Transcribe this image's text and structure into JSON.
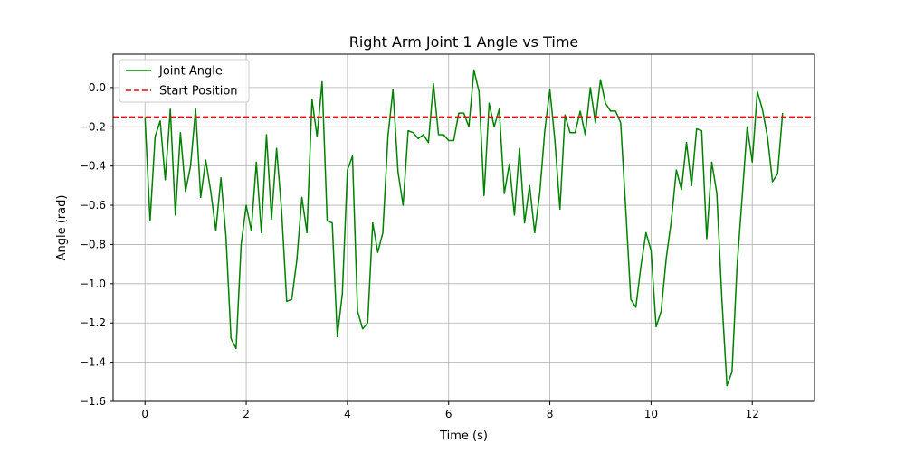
{
  "chart_data": {
    "type": "line",
    "title": "Right Arm Joint 1 Angle vs Time",
    "xlabel": "Time (s)",
    "ylabel": "Angle (rad)",
    "xlim": [
      -0.63,
      13.23
    ],
    "ylim": [
      -1.6,
      0.17
    ],
    "xticks": [
      0,
      2,
      4,
      6,
      8,
      10,
      12
    ],
    "yticks": [
      -1.6,
      -1.4,
      -1.2,
      -1.0,
      -0.8,
      -0.6,
      -0.4,
      -0.2,
      0.0
    ],
    "ytick_labels": [
      "−1.6",
      "−1.4",
      "−1.2",
      "−1.0",
      "−0.8",
      "−0.6",
      "−0.4",
      "−0.2",
      "0.0"
    ],
    "grid": true,
    "legend_position": "top-left",
    "series": [
      {
        "name": "Joint Angle",
        "style": "solid",
        "color": "#008000",
        "x": [
          0.0,
          0.1,
          0.2,
          0.3,
          0.4,
          0.5,
          0.6,
          0.7,
          0.8,
          0.9,
          1.0,
          1.1,
          1.2,
          1.3,
          1.4,
          1.5,
          1.6,
          1.7,
          1.8,
          1.9,
          2.0,
          2.1,
          2.2,
          2.3,
          2.4,
          2.5,
          2.6,
          2.7,
          2.8,
          2.9,
          3.0,
          3.1,
          3.2,
          3.3,
          3.4,
          3.5,
          3.6,
          3.7,
          3.8,
          3.9,
          4.0,
          4.1,
          4.2,
          4.3,
          4.4,
          4.5,
          4.6,
          4.7,
          4.8,
          4.9,
          5.0,
          5.1,
          5.2,
          5.3,
          5.4,
          5.5,
          5.6,
          5.7,
          5.8,
          5.9,
          6.0,
          6.1,
          6.2,
          6.3,
          6.4,
          6.5,
          6.6,
          6.7,
          6.8,
          6.9,
          7.0,
          7.1,
          7.2,
          7.3,
          7.4,
          7.5,
          7.6,
          7.7,
          7.8,
          7.9,
          8.0,
          8.1,
          8.2,
          8.3,
          8.4,
          8.5,
          8.6,
          8.7,
          8.8,
          8.9,
          9.0,
          9.1,
          9.2,
          9.3,
          9.4,
          9.5,
          9.6,
          9.7,
          9.8,
          9.9,
          10.0,
          10.1,
          10.2,
          10.3,
          10.4,
          10.5,
          10.6,
          10.7,
          10.8,
          10.9,
          11.0,
          11.1,
          11.2,
          11.3,
          11.4,
          11.5,
          11.6,
          11.7,
          11.8,
          11.9,
          12.0,
          12.1,
          12.2,
          12.3,
          12.4,
          12.5,
          12.6
        ],
        "y": [
          -0.15,
          -0.68,
          -0.25,
          -0.17,
          -0.47,
          -0.11,
          -0.65,
          -0.23,
          -0.53,
          -0.4,
          -0.11,
          -0.56,
          -0.37,
          -0.53,
          -0.73,
          -0.46,
          -0.76,
          -1.28,
          -1.33,
          -0.8,
          -0.6,
          -0.73,
          -0.38,
          -0.74,
          -0.24,
          -0.67,
          -0.31,
          -0.63,
          -1.09,
          -1.08,
          -0.88,
          -0.56,
          -0.74,
          -0.06,
          -0.25,
          0.03,
          -0.68,
          -0.69,
          -1.27,
          -1.05,
          -0.42,
          -0.35,
          -1.14,
          -1.23,
          -1.2,
          -0.69,
          -0.84,
          -0.74,
          -0.25,
          -0.01,
          -0.43,
          -0.6,
          -0.22,
          -0.23,
          -0.26,
          -0.24,
          -0.28,
          0.02,
          -0.24,
          -0.24,
          -0.27,
          -0.27,
          -0.13,
          -0.13,
          -0.2,
          0.09,
          -0.02,
          -0.55,
          -0.08,
          -0.2,
          -0.11,
          -0.54,
          -0.39,
          -0.65,
          -0.31,
          -0.69,
          -0.5,
          -0.74,
          -0.54,
          -0.22,
          -0.01,
          -0.27,
          -0.62,
          -0.14,
          -0.23,
          -0.23,
          -0.12,
          -0.24,
          0.0,
          -0.18,
          0.04,
          -0.08,
          -0.12,
          -0.12,
          -0.18,
          -0.62,
          -1.08,
          -1.12,
          -0.91,
          -0.74,
          -0.83,
          -1.22,
          -1.14,
          -0.87,
          -0.68,
          -0.42,
          -0.52,
          -0.28,
          -0.5,
          -0.21,
          -0.22,
          -0.77,
          -0.38,
          -0.54,
          -1.08,
          -1.52,
          -1.45,
          -0.91,
          -0.56,
          -0.2,
          -0.38,
          -0.02,
          -0.11,
          -0.25,
          -0.48,
          -0.44,
          -0.13
        ]
      },
      {
        "name": "Start Position",
        "style": "dashed",
        "color": "#ff0000",
        "y_constant": -0.15
      }
    ]
  }
}
